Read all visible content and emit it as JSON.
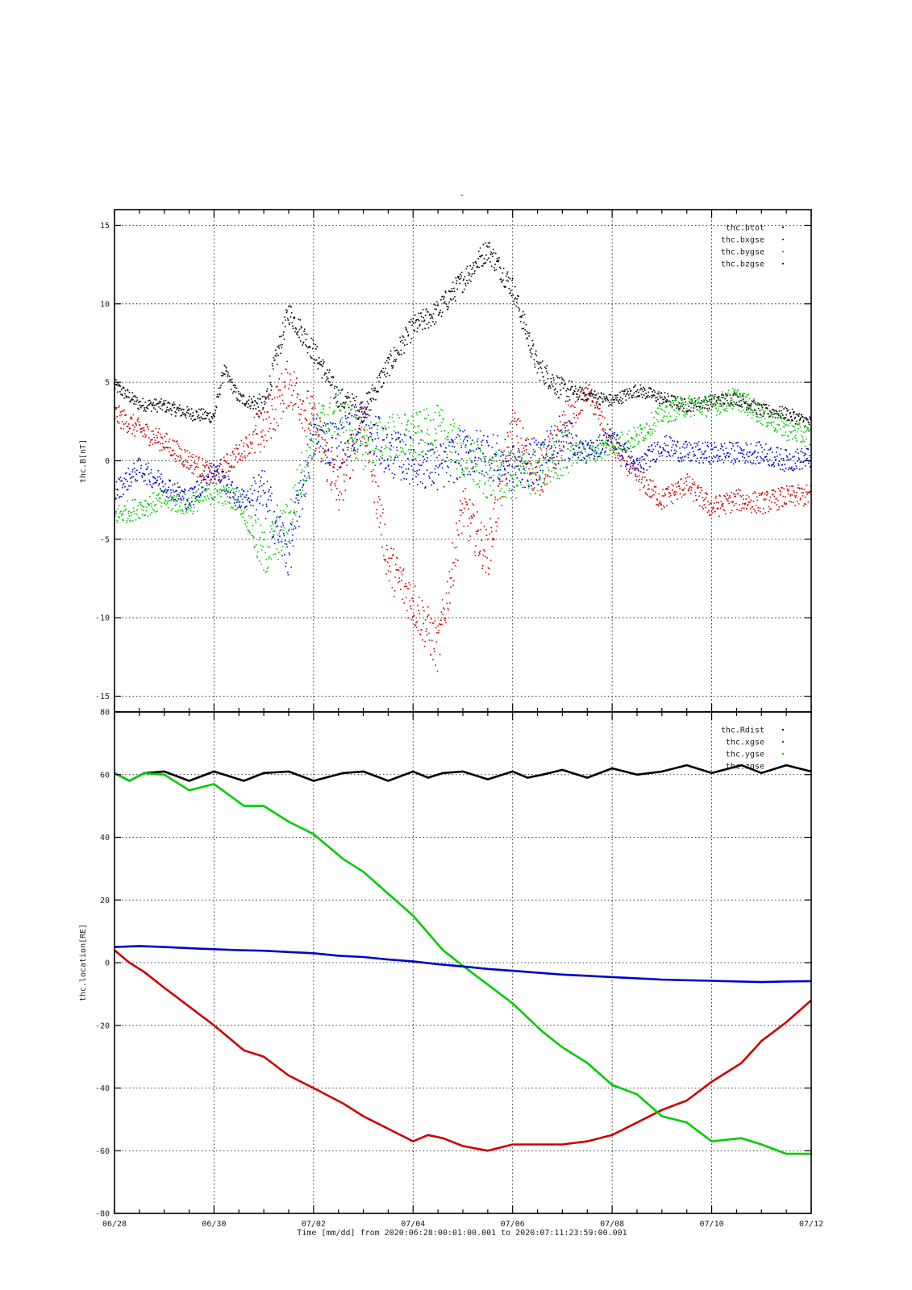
{
  "figure": {
    "top_title": "-",
    "xlabel": "Time [mm/dd]  from 2020:06:28:00:01:00.001  to  2020:07:11:23:59:00.001"
  },
  "colors": {
    "black": "#000000",
    "red": "#cc0000",
    "green": "#00cc00",
    "blue": "#0000cc"
  },
  "chart_data": [
    {
      "type": "scatter",
      "ylabel": "thc.B[nT]",
      "xlim": [
        0,
        14
      ],
      "ylim": [
        -16,
        16
      ],
      "yticks": [
        -15,
        -10,
        -5,
        0,
        5,
        10,
        15
      ],
      "x_tick_days": [
        0,
        2,
        4,
        6,
        8,
        10,
        12,
        14
      ],
      "x_tick_labels": [
        "06/28",
        "06/30",
        "07/02",
        "07/04",
        "07/06",
        "07/08",
        "07/10",
        "07/12"
      ],
      "grid": true,
      "legend_position": "top-right",
      "series": [
        {
          "name": "thc.btot",
          "color": "#000000",
          "x": [
            0,
            0.5,
            1,
            1.5,
            2,
            2.2,
            2.5,
            3,
            3.5,
            4,
            4.5,
            5,
            5.5,
            6,
            6.5,
            7,
            7.5,
            8,
            8.5,
            9,
            9.5,
            10,
            10.5,
            11,
            11.5,
            12,
            12.5,
            13,
            13.5,
            14
          ],
          "y": [
            4.8,
            3.6,
            3.5,
            3.0,
            2.8,
            5.8,
            4.0,
            3.4,
            9.5,
            7.0,
            4.0,
            3.2,
            6.0,
            8.5,
            9.5,
            11.5,
            13.5,
            11.0,
            6.0,
            4.5,
            4.2,
            3.8,
            4.5,
            4.0,
            3.5,
            3.8,
            4.0,
            3.2,
            3.0,
            2.4
          ]
        },
        {
          "name": "thc.bxgse",
          "color": "#cc0000",
          "x": [
            0,
            0.5,
            1,
            1.5,
            2,
            2.5,
            3,
            3.5,
            4,
            4.5,
            5,
            5.5,
            6,
            6.5,
            7,
            7.5,
            8,
            8.5,
            9,
            9.5,
            10,
            10.5,
            11,
            11.5,
            12,
            12.5,
            13,
            13.5,
            14
          ],
          "y": [
            3.0,
            2.0,
            1.2,
            0,
            -1.0,
            0.5,
            2.0,
            5.0,
            2.5,
            -2.0,
            3.0,
            -6.5,
            -9.0,
            -12.0,
            -3.0,
            -6.0,
            2.0,
            -1.0,
            1.5,
            4.5,
            1.0,
            -1.0,
            -2.5,
            -1.5,
            -3.0,
            -2.5,
            -2.7,
            -2.3,
            -2.2
          ]
        },
        {
          "name": "thc.bygse",
          "color": "#00cc00",
          "x": [
            0,
            0.5,
            1,
            1.5,
            2,
            2.5,
            3,
            3.5,
            4,
            4.5,
            5,
            5.5,
            6,
            6.5,
            7,
            7.5,
            8,
            8.5,
            9,
            9.5,
            10,
            10.5,
            11,
            11.5,
            12,
            12.5,
            13,
            13.5,
            14
          ],
          "y": [
            -3.5,
            -3.0,
            -2.5,
            -2.8,
            -2.0,
            -2.5,
            -6.0,
            -4.0,
            2.0,
            3.0,
            1.0,
            1.5,
            1.5,
            2.0,
            0.5,
            -1.0,
            -1.0,
            -0.5,
            0.5,
            0.5,
            1.0,
            1.5,
            3.0,
            3.5,
            3.5,
            4.0,
            3.0,
            2.0,
            1.5
          ]
        },
        {
          "name": "thc.bzgse",
          "color": "#0000cc",
          "x": [
            0,
            0.5,
            1,
            1.5,
            2,
            2.5,
            3,
            3.5,
            4,
            4.5,
            5,
            5.5,
            6,
            6.5,
            7,
            7.5,
            8,
            8.5,
            9,
            9.5,
            10,
            10.5,
            11,
            11.5,
            12,
            12.5,
            13,
            13.5,
            14
          ],
          "y": [
            -2.0,
            -0.5,
            -1.5,
            -2.5,
            -0.5,
            -2.5,
            -2.0,
            -6.0,
            1.5,
            1.0,
            2.5,
            0.5,
            0,
            -0.5,
            0.5,
            0.5,
            -0.5,
            0,
            1.5,
            0.5,
            1.5,
            -0.5,
            1.0,
            0.5,
            0.5,
            0.5,
            0.5,
            0.0,
            0.2
          ]
        }
      ]
    },
    {
      "type": "line",
      "ylabel": "thc.location[RE]",
      "xlim": [
        0,
        14
      ],
      "ylim": [
        -80,
        80
      ],
      "yticks": [
        -80,
        -60,
        -40,
        -20,
        0,
        20,
        40,
        60,
        80
      ],
      "x_tick_days": [
        0,
        2,
        4,
        6,
        8,
        10,
        12,
        14
      ],
      "x_tick_labels": [
        "06/28",
        "06/30",
        "07/02",
        "07/04",
        "07/06",
        "07/08",
        "07/10",
        "07/12"
      ],
      "grid": true,
      "legend_position": "top-right",
      "series": [
        {
          "name": "thc.Rdist",
          "color": "#000000",
          "x": [
            0,
            0.3,
            0.6,
            1,
            1.5,
            2,
            2.6,
            3,
            3.5,
            4,
            4.6,
            5,
            5.5,
            6,
            6.3,
            6.6,
            7,
            7.5,
            8,
            8.3,
            8.6,
            9,
            9.5,
            10,
            10.5,
            11,
            11.5,
            12,
            12.6,
            13,
            13.5,
            14
          ],
          "y": [
            60.5,
            58,
            60.5,
            61,
            58,
            61,
            58,
            60.5,
            61,
            58,
            60.5,
            61,
            58,
            61,
            59,
            60.5,
            61,
            58.5,
            61,
            59,
            60,
            61.5,
            59,
            62,
            60,
            61,
            63,
            60.5,
            63,
            60.5,
            63,
            61
          ]
        },
        {
          "name": "thc.xgse",
          "color": "#cc0000",
          "x": [
            0,
            0.3,
            0.6,
            1,
            1.5,
            2,
            2.6,
            3,
            3.5,
            4,
            4.6,
            5,
            5.5,
            6,
            6.3,
            6.6,
            7,
            7.5,
            8,
            8.5,
            9,
            9.5,
            10,
            10.5,
            11,
            11.5,
            12,
            12.6,
            13,
            13.5,
            14
          ],
          "y": [
            4,
            0,
            -3,
            -8,
            -14,
            -20,
            -28,
            -30,
            -36,
            -40,
            -45,
            -49,
            -53,
            -57,
            -55,
            -56,
            -58.5,
            -60,
            -58,
            -58,
            -58,
            -57,
            -55,
            -51,
            -47,
            -44,
            -38,
            -32,
            -25,
            -19,
            -12
          ]
        },
        {
          "name": "thc.ygse",
          "color": "#00cc00",
          "x": [
            0,
            0.3,
            0.6,
            1,
            1.5,
            2,
            2.6,
            3,
            3.5,
            4,
            4.6,
            5,
            5.5,
            6,
            6.6,
            7,
            7.5,
            8,
            8.6,
            9,
            9.5,
            10,
            10.5,
            11,
            11.5,
            12,
            12.6,
            13,
            13.5,
            14
          ],
          "y": [
            60.5,
            58,
            60.5,
            60,
            55,
            57,
            50,
            50,
            45,
            41,
            33,
            29,
            22,
            15,
            4,
            -1,
            -7,
            -13,
            -22,
            -27,
            -32,
            -39,
            -42,
            -49,
            -51,
            -57,
            -56,
            -58,
            -61,
            -61
          ]
        },
        {
          "name": "thc.zgse",
          "color": "#0000cc",
          "x": [
            0,
            0.5,
            1,
            1.5,
            2,
            2.5,
            3,
            3.5,
            4,
            4.5,
            5,
            5.5,
            6,
            6.5,
            7,
            7.5,
            8,
            8.5,
            9,
            9.5,
            10,
            10.5,
            11,
            11.5,
            12,
            12.5,
            13,
            13.5,
            14
          ],
          "y": [
            5,
            5.3,
            5,
            4.6,
            4.3,
            4,
            3.8,
            3.4,
            3,
            2.2,
            1.8,
            1,
            0.4,
            -0.5,
            -1.2,
            -2.0,
            -2.6,
            -3.2,
            -3.8,
            -4.2,
            -4.6,
            -5.0,
            -5.4,
            -5.6,
            -5.8,
            -6.0,
            -6.2,
            -6.0,
            -5.9
          ]
        }
      ]
    }
  ]
}
